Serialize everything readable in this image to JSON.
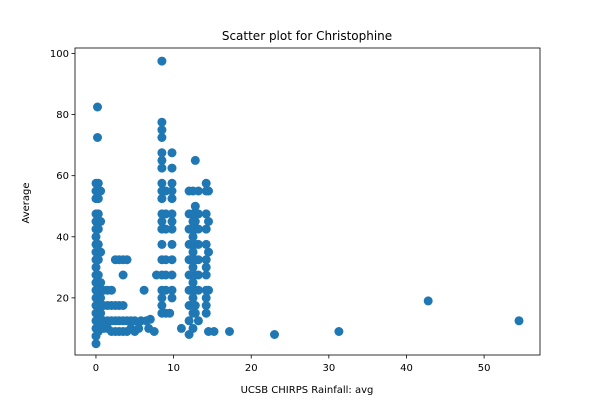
{
  "chart_data": {
    "type": "scatter",
    "title": "Scatter plot for Christophine",
    "xlabel": "UCSB CHIRPS Rainfall: avg",
    "ylabel": "Average",
    "xlim": [
      -2.7,
      57.2
    ],
    "ylim": [
      1.3,
      101.8
    ],
    "xticks": [
      0,
      10,
      20,
      30,
      40,
      50
    ],
    "yticks": [
      20,
      40,
      60,
      80,
      100
    ],
    "grid": false,
    "marker_color": "#1f77b4",
    "points": [
      [
        8.5,
        97.5
      ],
      [
        0.2,
        82.5
      ],
      [
        0.2,
        72.5
      ],
      [
        8.5,
        77.5
      ],
      [
        8.5,
        75.0
      ],
      [
        8.5,
        72.5
      ],
      [
        8.5,
        67.5
      ],
      [
        8.5,
        65.0
      ],
      [
        8.5,
        62.5
      ],
      [
        8.5,
        57.5
      ],
      [
        8.5,
        55.0
      ],
      [
        8.5,
        52.5
      ],
      [
        8.5,
        47.5
      ],
      [
        8.5,
        45.0
      ],
      [
        8.5,
        42.5
      ],
      [
        8.5,
        37.5
      ],
      [
        8.5,
        32.5
      ],
      [
        8.5,
        27.5
      ],
      [
        8.5,
        22.5
      ],
      [
        8.5,
        20.0
      ],
      [
        8.5,
        17.5
      ],
      [
        8.5,
        15.0
      ],
      [
        9.8,
        67.5
      ],
      [
        9.8,
        62.5
      ],
      [
        9.8,
        57.5
      ],
      [
        9.8,
        55.0
      ],
      [
        9.8,
        52.5
      ],
      [
        9.8,
        47.5
      ],
      [
        9.8,
        45.0
      ],
      [
        9.8,
        42.5
      ],
      [
        9.8,
        37.5
      ],
      [
        9.8,
        32.5
      ],
      [
        9.8,
        27.5
      ],
      [
        9.8,
        22.5
      ],
      [
        9.8,
        20.0
      ],
      [
        9.0,
        55.0
      ],
      [
        9.0,
        47.5
      ],
      [
        9.0,
        42.5
      ],
      [
        9.0,
        32.5
      ],
      [
        9.0,
        27.5
      ],
      [
        9.0,
        22.5
      ],
      [
        9.0,
        15.0
      ],
      [
        7.8,
        27.5
      ],
      [
        6.2,
        22.5
      ],
      [
        7.0,
        13.0
      ],
      [
        9.5,
        15.0
      ],
      [
        0.0,
        57.5
      ],
      [
        0.0,
        55.0
      ],
      [
        0.0,
        52.5
      ],
      [
        0.0,
        47.5
      ],
      [
        0.0,
        45.0
      ],
      [
        0.0,
        42.5
      ],
      [
        0.0,
        40.0
      ],
      [
        0.0,
        37.5
      ],
      [
        0.0,
        35.0
      ],
      [
        0.0,
        32.5
      ],
      [
        0.0,
        30.0
      ],
      [
        0.0,
        27.5
      ],
      [
        0.0,
        25.0
      ],
      [
        0.0,
        22.5
      ],
      [
        0.0,
        20.0
      ],
      [
        0.0,
        17.5
      ],
      [
        0.0,
        15.0
      ],
      [
        0.0,
        12.5
      ],
      [
        0.0,
        10.0
      ],
      [
        0.0,
        7.5
      ],
      [
        0.0,
        5.0
      ],
      [
        0.3,
        57.5
      ],
      [
        0.3,
        52.5
      ],
      [
        0.3,
        47.5
      ],
      [
        0.3,
        42.5
      ],
      [
        0.3,
        37.5
      ],
      [
        0.3,
        32.5
      ],
      [
        0.3,
        27.5
      ],
      [
        0.3,
        22.5
      ],
      [
        0.3,
        17.5
      ],
      [
        0.3,
        12.5
      ],
      [
        0.3,
        9.0
      ],
      [
        0.6,
        55.0
      ],
      [
        0.6,
        45.0
      ],
      [
        0.6,
        35.0
      ],
      [
        0.6,
        25.0
      ],
      [
        0.6,
        20.0
      ],
      [
        0.6,
        15.0
      ],
      [
        0.6,
        11.0
      ],
      [
        1.0,
        22.5
      ],
      [
        1.0,
        17.5
      ],
      [
        1.0,
        12.5
      ],
      [
        1.0,
        10.0
      ],
      [
        1.5,
        22.5
      ],
      [
        1.5,
        17.5
      ],
      [
        1.5,
        12.5
      ],
      [
        1.5,
        10.0
      ],
      [
        2.0,
        22.5
      ],
      [
        2.0,
        17.5
      ],
      [
        2.0,
        12.5
      ],
      [
        2.0,
        9.0
      ],
      [
        2.5,
        32.5
      ],
      [
        2.5,
        17.5
      ],
      [
        2.5,
        12.5
      ],
      [
        2.5,
        9.0
      ],
      [
        3.0,
        32.5
      ],
      [
        3.0,
        17.5
      ],
      [
        3.0,
        12.5
      ],
      [
        3.0,
        9.0
      ],
      [
        3.5,
        32.5
      ],
      [
        3.5,
        27.5
      ],
      [
        3.5,
        17.5
      ],
      [
        3.5,
        12.5
      ],
      [
        3.5,
        9.0
      ],
      [
        4.0,
        32.5
      ],
      [
        4.0,
        12.5
      ],
      [
        4.0,
        9.0
      ],
      [
        4.5,
        12.5
      ],
      [
        4.5,
        10.0
      ],
      [
        5.0,
        12.5
      ],
      [
        5.0,
        9.0
      ],
      [
        5.5,
        10.0
      ],
      [
        5.8,
        12.5
      ],
      [
        6.5,
        12.5
      ],
      [
        6.8,
        10.0
      ],
      [
        7.5,
        9.0
      ],
      [
        11.0,
        10.0
      ],
      [
        12.0,
        55.0
      ],
      [
        12.0,
        47.5
      ],
      [
        12.0,
        42.5
      ],
      [
        12.0,
        37.5
      ],
      [
        12.0,
        32.5
      ],
      [
        12.0,
        27.5
      ],
      [
        12.0,
        22.5
      ],
      [
        12.0,
        17.5
      ],
      [
        12.0,
        12.5
      ],
      [
        12.0,
        8.0
      ],
      [
        12.5,
        55.0
      ],
      [
        12.5,
        47.5
      ],
      [
        12.5,
        45.0
      ],
      [
        12.5,
        40.0
      ],
      [
        12.5,
        35.0
      ],
      [
        12.5,
        30.0
      ],
      [
        12.5,
        25.0
      ],
      [
        12.5,
        20.0
      ],
      [
        12.5,
        15.0
      ],
      [
        12.5,
        10.0
      ],
      [
        12.8,
        65.0
      ],
      [
        12.8,
        50.0
      ],
      [
        12.8,
        45.0
      ],
      [
        12.8,
        42.5
      ],
      [
        12.8,
        37.5
      ],
      [
        12.8,
        32.5
      ],
      [
        12.8,
        27.5
      ],
      [
        12.8,
        22.5
      ],
      [
        12.8,
        17.5
      ],
      [
        12.8,
        15.0
      ],
      [
        13.2,
        55.0
      ],
      [
        13.2,
        47.5
      ],
      [
        13.2,
        42.5
      ],
      [
        13.2,
        37.5
      ],
      [
        13.2,
        32.5
      ],
      [
        13.2,
        27.5
      ],
      [
        13.2,
        22.5
      ],
      [
        13.2,
        12.5
      ],
      [
        14.2,
        57.5
      ],
      [
        14.2,
        55.0
      ],
      [
        14.2,
        47.5
      ],
      [
        14.2,
        42.5
      ],
      [
        14.2,
        37.5
      ],
      [
        14.2,
        32.5
      ],
      [
        14.2,
        30.0
      ],
      [
        14.2,
        27.5
      ],
      [
        14.2,
        22.5
      ],
      [
        14.2,
        20.0
      ],
      [
        14.2,
        17.5
      ],
      [
        14.2,
        15.0
      ],
      [
        14.5,
        55.0
      ],
      [
        14.5,
        45.0
      ],
      [
        14.5,
        35.0
      ],
      [
        14.5,
        22.5
      ],
      [
        14.5,
        9.0
      ],
      [
        15.2,
        9.0
      ],
      [
        17.2,
        9.0
      ],
      [
        23.0,
        8.0
      ],
      [
        31.3,
        9.0
      ],
      [
        42.8,
        19.0
      ],
      [
        54.5,
        12.5
      ]
    ]
  }
}
